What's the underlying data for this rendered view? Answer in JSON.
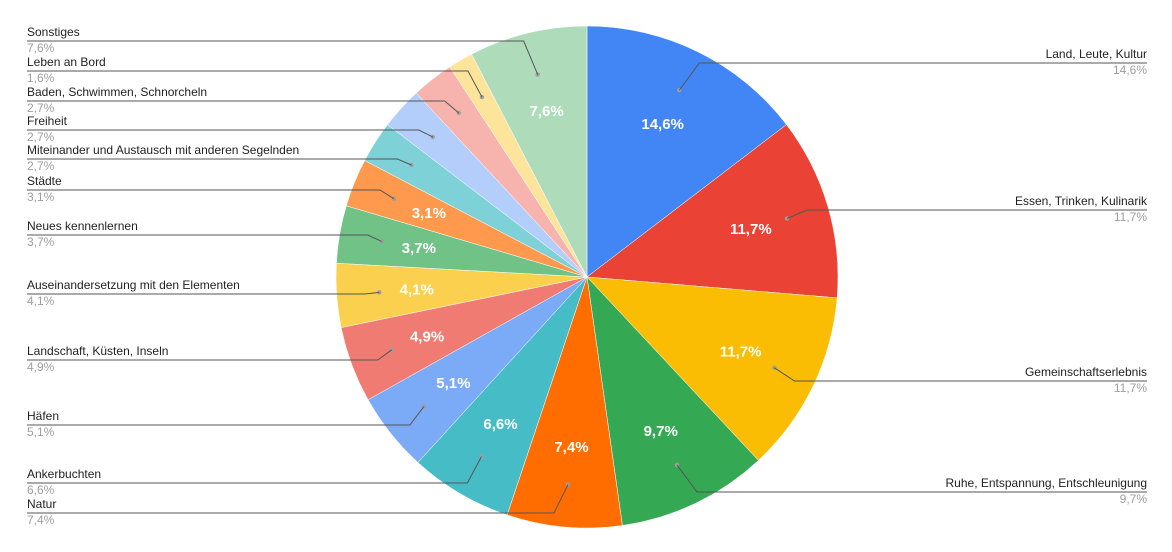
{
  "chart_data": {
    "type": "pie",
    "title": "",
    "unit": "%",
    "slices": [
      {
        "label": "Land, Leute, Kultur",
        "value": 14.6,
        "display": "14,6%",
        "color": "#4285f4",
        "slice_label_color": "#ffffff"
      },
      {
        "label": "Essen, Trinken, Kulinarik",
        "value": 11.7,
        "display": "11,7%",
        "color": "#ea4335",
        "slice_label_color": "#ffffff"
      },
      {
        "label": "Gemeinschaftserlebnis",
        "value": 11.7,
        "display": "11,7%",
        "color": "#fbbc04",
        "slice_label_color": "#ffffff"
      },
      {
        "label": "Ruhe, Entspannung, Entschleunigung",
        "value": 9.7,
        "display": "9,7%",
        "color": "#34a853",
        "slice_label_color": "#ffffff"
      },
      {
        "label": "Natur",
        "value": 7.4,
        "display": "7,4%",
        "color": "#ff6d01",
        "slice_label_color": "#ffffff"
      },
      {
        "label": "Ankerbuchten",
        "value": 6.6,
        "display": "6,6%",
        "color": "#46bdc6",
        "slice_label_color": "#ffffff"
      },
      {
        "label": "Häfen",
        "value": 5.1,
        "display": "5,1%",
        "color": "#7baaf7",
        "slice_label_color": "#ffffff"
      },
      {
        "label": "Landschaft, Küsten, Inseln",
        "value": 4.9,
        "display": "4,9%",
        "color": "#f07b72",
        "slice_label_color": "#ffffff"
      },
      {
        "label": "Auseinandersetzung mit den Elementen",
        "value": 4.1,
        "display": "4,1%",
        "color": "#fcd04f",
        "slice_label_color": "#ffffff"
      },
      {
        "label": "Neues kennenlernen",
        "value": 3.7,
        "display": "3,7%",
        "color": "#71c287",
        "slice_label_color": "#ffffff"
      },
      {
        "label": "Städte",
        "value": 3.1,
        "display": "3,1%",
        "color": "#ff994d",
        "slice_label_color": "#ffffff"
      },
      {
        "label": "Miteinander und Austausch mit anderen Segelnden",
        "value": 2.7,
        "display": "2,7%",
        "color": "#7ed1d7",
        "slice_label_color": "#ffffff"
      },
      {
        "label": "Freiheit",
        "value": 2.7,
        "display": "2,7%",
        "color": "#b3cefb",
        "slice_label_color": "#ffffff"
      },
      {
        "label": "Baden, Schwimmen, Schnorcheln",
        "value": 2.7,
        "display": "2,7%",
        "color": "#f7b4ae",
        "slice_label_color": "#ffffff"
      },
      {
        "label": "Leben an Bord",
        "value": 1.6,
        "display": "1,6%",
        "color": "#fde49b",
        "slice_label_color": "#ffffff"
      },
      {
        "label": "Sonstiges",
        "value": 7.6,
        "display": "7,6%",
        "color": "#aedcba",
        "slice_label_color": "#ffffff"
      }
    ],
    "legend": "leader-lines"
  }
}
